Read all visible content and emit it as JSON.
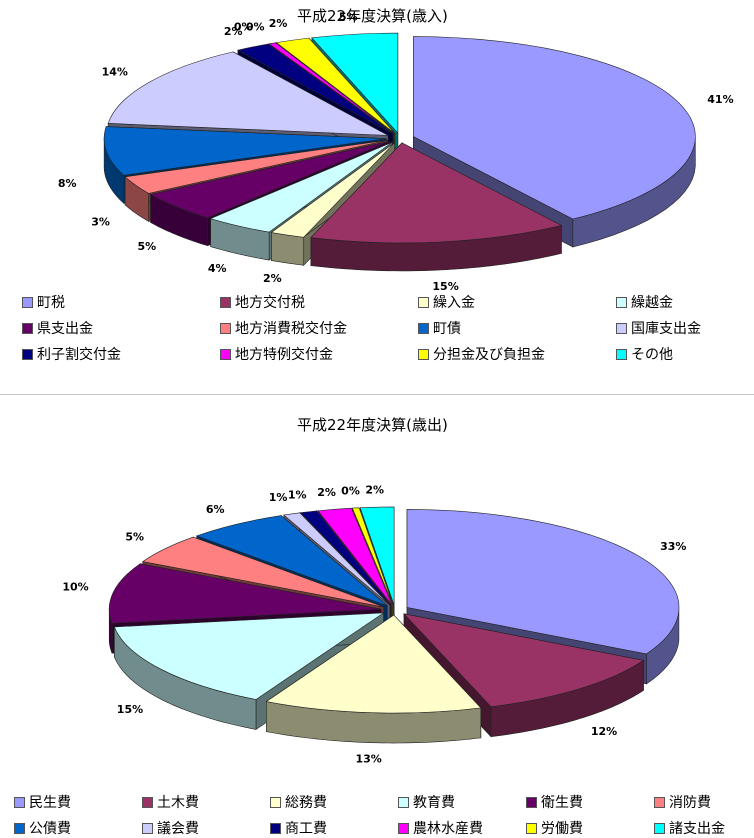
{
  "chart_data": [
    {
      "type": "pie",
      "title": "平成22年度決算(歳入)",
      "start_angle_deg": 90,
      "slices": [
        {
          "name": "町税",
          "value": 41,
          "label": "41%",
          "color": "#9999ff"
        },
        {
          "name": "地方交付税",
          "value": 15,
          "label": "15%",
          "color": "#993366"
        },
        {
          "name": "繰入金",
          "value": 2,
          "label": "2%",
          "color": "#ffffcc"
        },
        {
          "name": "繰越金",
          "value": 4,
          "label": "4%",
          "color": "#ccffff"
        },
        {
          "name": "県支出金",
          "value": 5,
          "label": "5%",
          "color": "#660066"
        },
        {
          "name": "地方消費税交付金",
          "value": 3,
          "label": "3%",
          "color": "#ff8080"
        },
        {
          "name": "町債",
          "value": 8,
          "label": "8%",
          "color": "#0066cc"
        },
        {
          "name": "国庫支出金",
          "value": 14,
          "label": "14%",
          "color": "#ccccff"
        },
        {
          "name": "利子割交付金",
          "value": 2,
          "label": "2%",
          "color": "#000080"
        },
        {
          "name": "地方特例交付金",
          "value": 0.4,
          "label": "0%",
          "color": "#ff00ff"
        },
        {
          "name": "分担金及び負担金",
          "value": 2,
          "label": "2%",
          "color": "#ffff00"
        },
        {
          "name": "その他",
          "value": 5,
          "label": "5%",
          "color": "#00ffff"
        }
      ],
      "extra_labels": [
        "0%"
      ],
      "legend": [
        "町税",
        "地方交付税",
        "繰入金",
        "繰越金",
        "県支出金",
        "地方消費税交付金",
        "町債",
        "国庫支出金",
        "利子割交付金",
        "地方特例交付金",
        "分担金及び負担金",
        "その他"
      ]
    },
    {
      "type": "pie",
      "title": "平成22年度決算(歳出)",
      "start_angle_deg": 90,
      "slices": [
        {
          "name": "民生費",
          "value": 33,
          "label": "33%",
          "color": "#9999ff"
        },
        {
          "name": "土木費",
          "value": 12,
          "label": "12%",
          "color": "#993366"
        },
        {
          "name": "総務費",
          "value": 13,
          "label": "13%",
          "color": "#ffffcc"
        },
        {
          "name": "教育費",
          "value": 15,
          "label": "15%",
          "color": "#ccffff"
        },
        {
          "name": "衛生費",
          "value": 10,
          "label": "10%",
          "color": "#660066"
        },
        {
          "name": "消防費",
          "value": 5,
          "label": "5%",
          "color": "#ff8080"
        },
        {
          "name": "公債費",
          "value": 6,
          "label": "6%",
          "color": "#0066cc"
        },
        {
          "name": "議会費",
          "value": 1,
          "label": "1%",
          "color": "#ccccff"
        },
        {
          "name": "商工費",
          "value": 1,
          "label": "1%",
          "color": "#000080"
        },
        {
          "name": "農林水産費",
          "value": 2,
          "label": "2%",
          "color": "#ff00ff"
        },
        {
          "name": "労働費",
          "value": 0.4,
          "label": "0%",
          "color": "#ffff00"
        },
        {
          "name": "諸支出金",
          "value": 2,
          "label": "2%",
          "color": "#00ffff"
        }
      ],
      "legend": [
        "民生費",
        "土木費",
        "総務費",
        "教育費",
        "衛生費",
        "消防費",
        "公債費",
        "議会費",
        "商工費",
        "農林水産費",
        "労働費",
        "諸支出金"
      ]
    }
  ]
}
